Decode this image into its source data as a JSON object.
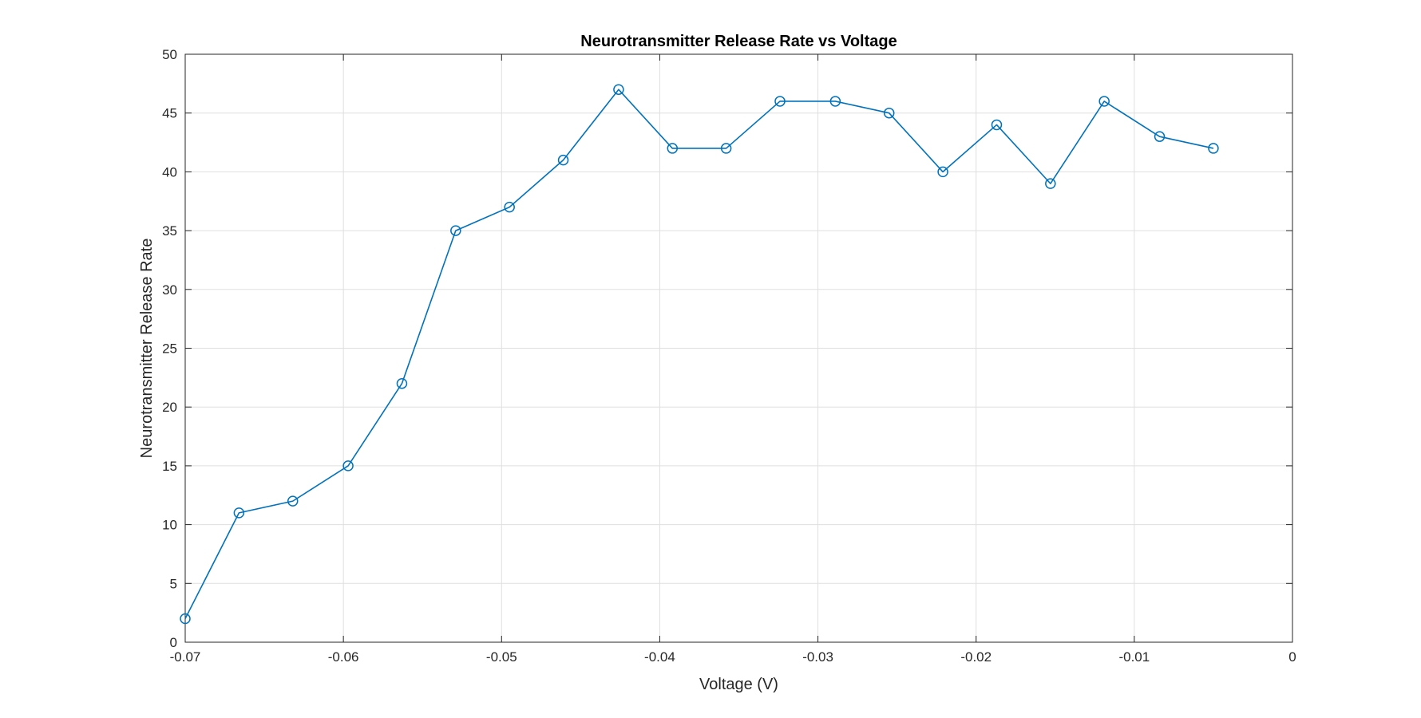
{
  "chart_data": {
    "type": "line",
    "title": "Neurotransmitter Release Rate vs Voltage",
    "xlabel": "Voltage (V)",
    "ylabel": "Neurotransmitter Release Rate",
    "xlim": [
      -0.07,
      0
    ],
    "ylim": [
      0,
      50
    ],
    "xticks": [
      -0.07,
      -0.06,
      -0.05,
      -0.04,
      -0.03,
      -0.02,
      -0.01,
      0
    ],
    "xtick_labels": [
      "-0.07",
      "-0.06",
      "-0.05",
      "-0.04",
      "-0.03",
      "-0.02",
      "-0.01",
      "0"
    ],
    "yticks": [
      0,
      5,
      10,
      15,
      20,
      25,
      30,
      35,
      40,
      45,
      50
    ],
    "ytick_labels": [
      "0",
      "5",
      "10",
      "15",
      "20",
      "25",
      "30",
      "35",
      "40",
      "45",
      "50"
    ],
    "grid": true,
    "marker": "circle",
    "series": [
      {
        "color": "#0072BD",
        "x": [
          -0.07,
          -0.0666,
          -0.0632,
          -0.0597,
          -0.0563,
          -0.0529,
          -0.0495,
          -0.0461,
          -0.0426,
          -0.0392,
          -0.0358,
          -0.0324,
          -0.0289,
          -0.0255,
          -0.0221,
          -0.0187,
          -0.0153,
          -0.0119,
          -0.0084,
          -0.005
        ],
        "y": [
          2,
          11,
          12,
          15,
          22,
          35,
          37,
          41,
          47,
          42,
          42,
          46,
          46,
          45,
          40,
          44,
          39,
          46,
          43,
          42
        ]
      }
    ]
  }
}
